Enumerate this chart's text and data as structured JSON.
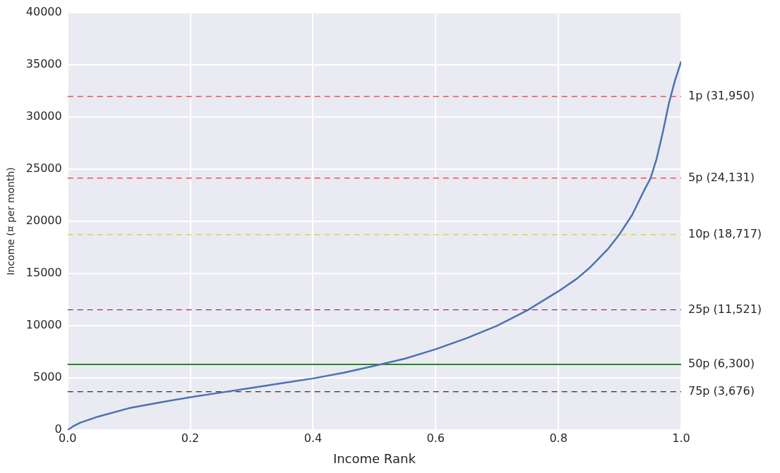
{
  "chart_data": {
    "type": "line",
    "xlabel": "Income Rank",
    "ylabel": "Income (¤ per month)",
    "xlim": [
      0,
      1
    ],
    "ylim": [
      0,
      40000
    ],
    "xticks": [
      {
        "value": 0,
        "label": "0.0"
      },
      {
        "value": 0.2,
        "label": "0.2"
      },
      {
        "value": 0.4,
        "label": "0.4"
      },
      {
        "value": 0.6,
        "label": "0.6"
      },
      {
        "value": 0.8,
        "label": "0.8"
      },
      {
        "value": 1,
        "label": "1.0"
      }
    ],
    "yticks": [
      0,
      5000,
      10000,
      15000,
      20000,
      25000,
      30000,
      35000,
      40000
    ],
    "grid": true,
    "legend": false,
    "marker": "none",
    "line_style": "solid",
    "x": [
      0,
      0.01,
      0.02,
      0.05,
      0.1,
      0.15,
      0.2,
      0.25,
      0.3,
      0.35,
      0.4,
      0.45,
      0.5,
      0.55,
      0.6,
      0.65,
      0.7,
      0.75,
      0.8,
      0.83,
      0.85,
      0.88,
      0.9,
      0.92,
      0.94,
      0.95,
      0.96,
      0.97,
      0.98,
      0.99,
      1
    ],
    "series": [
      {
        "color": "#4c72b0",
        "values": [
          0,
          400,
          700,
          1300,
          2100,
          2650,
          3150,
          3600,
          4050,
          4500,
          4950,
          5500,
          6150,
          6850,
          7750,
          8800,
          10000,
          11500,
          13300,
          14500,
          15500,
          17300,
          18800,
          20600,
          23000,
          24100,
          26000,
          28500,
          31300,
          33500,
          35300
        ]
      }
    ],
    "ref_lines": [
      {
        "axis": "y",
        "value": 31950,
        "label": "1p (31,950)",
        "color": "#ff0000",
        "line_style": "dashed"
      },
      {
        "axis": "y",
        "value": 24131,
        "label": "5p (24,131)",
        "color": "#ff0000",
        "line_style": "dashed"
      },
      {
        "axis": "y",
        "value": 18717,
        "label": "10p (18,717)",
        "color": "#cccc00",
        "line_style": "dashed"
      },
      {
        "axis": "y",
        "value": 11521,
        "label": "25p (11,521)",
        "color": "#800080",
        "line_style": "dashed"
      },
      {
        "axis": "y",
        "value": 6300,
        "label": "50p (6,300)",
        "color": "#008000",
        "line_style": "solid"
      },
      {
        "axis": "y",
        "value": 3676,
        "label": "75p (3,676)",
        "color": "#000000",
        "line_style": "dashed"
      }
    ]
  }
}
